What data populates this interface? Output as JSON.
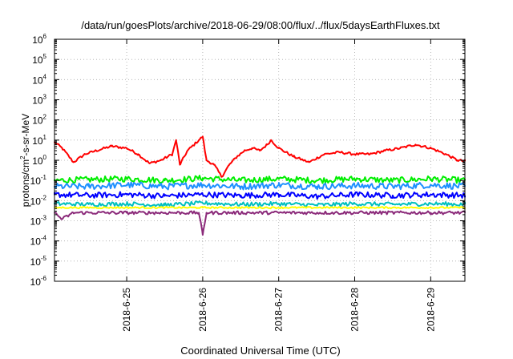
{
  "chart_data": {
    "type": "line",
    "title": "/data/run/goesPlots/archive/2018-06-29/08:00/flux/../flux/5daysEarthFluxes.txt",
    "xlabel": "Coordinated Universal Time (UTC)",
    "ylabel": "protons/cm²-s-sr-MeV",
    "ylabel_parts": [
      "protons/cm",
      "2",
      "-s-sr-MeV"
    ],
    "yscale": "log",
    "ylim_exp": [
      -6,
      6
    ],
    "y_tick_exponents": [
      -6,
      -5,
      -4,
      -3,
      -2,
      -1,
      0,
      1,
      2,
      3,
      4,
      5,
      6
    ],
    "y_tick_base": "10",
    "xlim_days": [
      24.05,
      29.45
    ],
    "x_ticks": [
      {
        "label": "2018-6-25",
        "day": 25.0
      },
      {
        "label": "2018-6-26",
        "day": 26.0
      },
      {
        "label": "2018-6-27",
        "day": 27.0
      },
      {
        "label": "2018-6-28",
        "day": 28.0
      },
      {
        "label": "2018-6-29",
        "day": 29.0
      }
    ],
    "grid": true,
    "legend": "none",
    "series": [
      {
        "color": "#ff0000",
        "noise": 0.06,
        "points": [
          [
            24.05,
            8
          ],
          [
            24.15,
            4
          ],
          [
            24.3,
            0.8
          ],
          [
            24.45,
            2
          ],
          [
            24.6,
            3
          ],
          [
            24.8,
            5
          ],
          [
            25.0,
            4
          ],
          [
            25.15,
            2
          ],
          [
            25.3,
            0.7
          ],
          [
            25.45,
            1
          ],
          [
            25.6,
            2
          ],
          [
            25.65,
            10
          ],
          [
            25.7,
            0.6
          ],
          [
            25.8,
            3
          ],
          [
            25.95,
            10
          ],
          [
            26.0,
            15
          ],
          [
            26.05,
            1
          ],
          [
            26.15,
            0.6
          ],
          [
            26.25,
            0.15
          ],
          [
            26.35,
            0.6
          ],
          [
            26.45,
            1.5
          ],
          [
            26.55,
            3
          ],
          [
            26.65,
            4
          ],
          [
            26.75,
            3
          ],
          [
            26.85,
            6
          ],
          [
            26.9,
            10
          ],
          [
            27.0,
            4
          ],
          [
            27.2,
            1.5
          ],
          [
            27.4,
            0.8
          ],
          [
            27.6,
            2
          ],
          [
            27.8,
            2.5
          ],
          [
            28.0,
            2
          ],
          [
            28.2,
            2
          ],
          [
            28.4,
            3
          ],
          [
            28.6,
            4
          ],
          [
            28.8,
            6
          ],
          [
            29.0,
            4
          ],
          [
            29.2,
            2
          ],
          [
            29.35,
            1
          ],
          [
            29.45,
            0.9
          ]
        ]
      },
      {
        "color": "#00ee00",
        "noise": 0.15,
        "points": [
          [
            24.05,
            0.1
          ],
          [
            24.5,
            0.11
          ],
          [
            25.0,
            0.12
          ],
          [
            25.5,
            0.1
          ],
          [
            26.0,
            0.13
          ],
          [
            26.5,
            0.1
          ],
          [
            27.0,
            0.12
          ],
          [
            27.5,
            0.1
          ],
          [
            28.0,
            0.12
          ],
          [
            28.5,
            0.1
          ],
          [
            29.0,
            0.12
          ],
          [
            29.45,
            0.1
          ]
        ]
      },
      {
        "color": "#1e90ff",
        "noise": 0.16,
        "points": [
          [
            24.05,
            0.05
          ],
          [
            24.5,
            0.05
          ],
          [
            25.0,
            0.06
          ],
          [
            25.5,
            0.05
          ],
          [
            26.0,
            0.06
          ],
          [
            26.5,
            0.05
          ],
          [
            27.0,
            0.06
          ],
          [
            27.5,
            0.05
          ],
          [
            28.0,
            0.055
          ],
          [
            28.5,
            0.05
          ],
          [
            29.0,
            0.06
          ],
          [
            29.45,
            0.05
          ]
        ]
      },
      {
        "color": "#0000ff",
        "noise": 0.14,
        "points": [
          [
            24.05,
            0.02
          ],
          [
            24.5,
            0.018
          ],
          [
            25.0,
            0.02
          ],
          [
            25.5,
            0.017
          ],
          [
            26.0,
            0.02
          ],
          [
            26.5,
            0.018
          ],
          [
            27.0,
            0.02
          ],
          [
            27.5,
            0.016
          ],
          [
            28.0,
            0.02
          ],
          [
            28.5,
            0.018
          ],
          [
            29.0,
            0.02
          ],
          [
            29.45,
            0.018
          ]
        ]
      },
      {
        "color": "#00bfbf",
        "noise": 0.1,
        "points": [
          [
            24.05,
            0.007
          ],
          [
            24.5,
            0.0065
          ],
          [
            25.0,
            0.007
          ],
          [
            25.5,
            0.006
          ],
          [
            26.0,
            0.0075
          ],
          [
            26.5,
            0.0065
          ],
          [
            27.0,
            0.007
          ],
          [
            27.5,
            0.006
          ],
          [
            28.0,
            0.007
          ],
          [
            28.5,
            0.0065
          ],
          [
            29.0,
            0.007
          ],
          [
            29.45,
            0.0065
          ]
        ]
      },
      {
        "color": "#ffff00",
        "noise": 0.04,
        "points": [
          [
            24.05,
            0.0045
          ],
          [
            25.0,
            0.0045
          ],
          [
            26.0,
            0.0045
          ],
          [
            27.0,
            0.0045
          ],
          [
            28.0,
            0.0045
          ],
          [
            29.0,
            0.0045
          ],
          [
            29.45,
            0.0045
          ]
        ]
      },
      {
        "color": "#8b2a7a",
        "noise": 0.08,
        "points": [
          [
            24.05,
            0.0025
          ],
          [
            24.15,
            0.0012
          ],
          [
            24.3,
            0.0025
          ],
          [
            25.0,
            0.0025
          ],
          [
            25.95,
            0.0025
          ],
          [
            26.0,
            0.0002
          ],
          [
            26.05,
            0.0025
          ],
          [
            27.0,
            0.0025
          ],
          [
            28.0,
            0.0025
          ],
          [
            29.0,
            0.0025
          ],
          [
            29.45,
            0.0025
          ]
        ]
      }
    ]
  }
}
